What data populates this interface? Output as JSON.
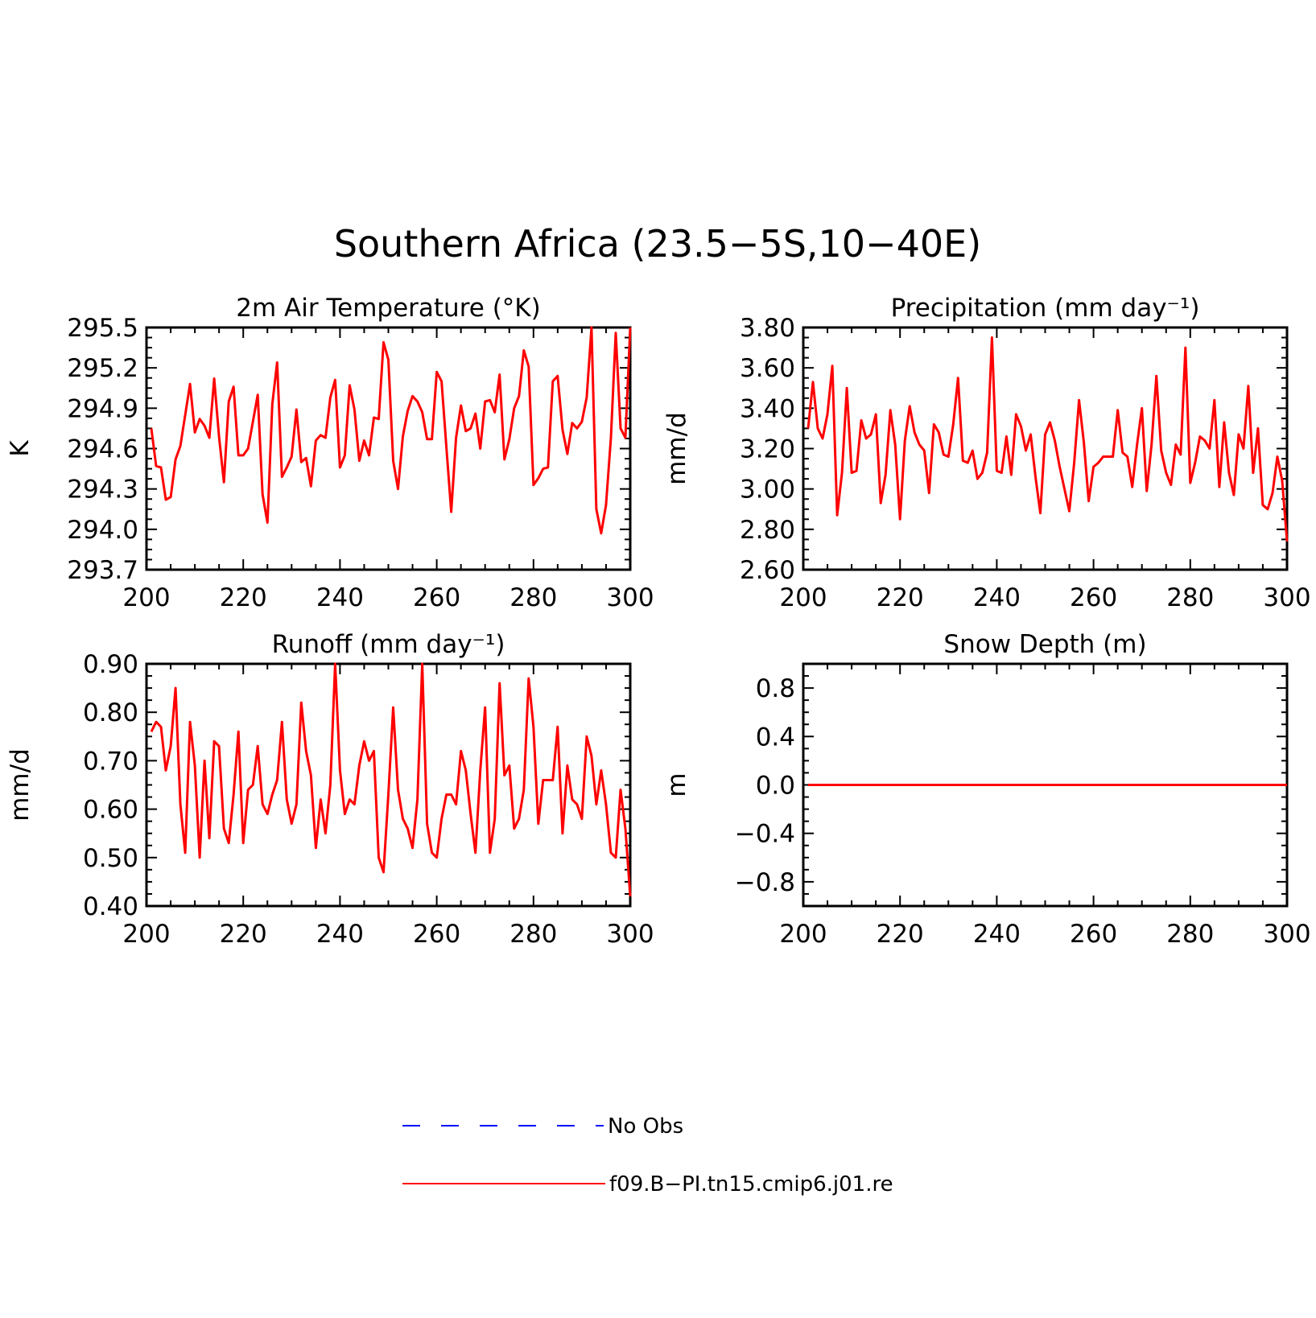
{
  "main_title": "Southern Africa (23.5−5S,10−40E)",
  "series_color": "#ff0000",
  "obs_color": "#0000ff",
  "legend": {
    "obs_label": "No Obs",
    "model_label": "f09.B−PI.tn15.cmip6.j01.re"
  },
  "chart_data": [
    {
      "type": "line",
      "title": "2m Air Temperature (°K)",
      "ylabel": "K",
      "xlim": [
        200,
        300
      ],
      "ylim": [
        293.7,
        295.5
      ],
      "xticks": [
        200,
        220,
        240,
        260,
        280,
        300
      ],
      "xtick_labels": [
        "200",
        "220",
        "240",
        "260",
        "280",
        "300"
      ],
      "yticks": [
        293.7,
        294.0,
        294.3,
        294.6,
        294.9,
        295.2,
        295.5
      ],
      "ytick_labels": [
        "293.7",
        "294.0",
        "294.3",
        "294.6",
        "294.9",
        "295.2",
        "295.5"
      ],
      "x_start": 201,
      "y": [
        294.75,
        294.47,
        294.46,
        294.22,
        294.24,
        294.52,
        294.62,
        294.85,
        295.08,
        294.72,
        294.82,
        294.77,
        294.68,
        295.12,
        294.69,
        294.35,
        294.95,
        295.06,
        294.55,
        294.55,
        294.6,
        294.8,
        295.0,
        294.26,
        294.05,
        294.93,
        295.24,
        294.39,
        294.46,
        294.54,
        294.89,
        294.5,
        294.53,
        294.32,
        294.66,
        294.7,
        294.68,
        294.98,
        295.11,
        294.46,
        294.55,
        295.07,
        294.89,
        294.51,
        294.66,
        294.55,
        294.83,
        294.82,
        295.39,
        295.26,
        294.51,
        294.3,
        294.69,
        294.88,
        294.99,
        294.95,
        294.87,
        294.67,
        294.67,
        295.17,
        295.1,
        294.61,
        294.13,
        294.68,
        294.92,
        294.73,
        294.75,
        294.86,
        294.6,
        294.95,
        294.96,
        294.87,
        295.15,
        294.52,
        294.67,
        294.9,
        294.99,
        295.33,
        295.21,
        294.33,
        294.38,
        294.45,
        294.46,
        295.1,
        295.14,
        294.74,
        294.56,
        294.79,
        294.75,
        294.8,
        294.98,
        295.5,
        294.15,
        293.97,
        294.18,
        294.68,
        295.46,
        294.75,
        294.68,
        295.5
      ]
    },
    {
      "type": "line",
      "title": "Precipitation (mm day⁻¹)",
      "ylabel": "mm/d",
      "xlim": [
        200,
        300
      ],
      "ylim": [
        2.6,
        3.8
      ],
      "xticks": [
        200,
        220,
        240,
        260,
        280,
        300
      ],
      "xtick_labels": [
        "200",
        "220",
        "240",
        "260",
        "280",
        "300"
      ],
      "yticks": [
        2.6,
        2.8,
        3.0,
        3.2,
        3.4,
        3.6,
        3.8
      ],
      "ytick_labels": [
        "2.60",
        "2.80",
        "3.00",
        "3.20",
        "3.40",
        "3.60",
        "3.80"
      ],
      "x_start": 201,
      "y": [
        3.3,
        3.53,
        3.3,
        3.25,
        3.37,
        3.61,
        2.87,
        3.08,
        3.5,
        3.08,
        3.09,
        3.34,
        3.25,
        3.27,
        3.37,
        2.93,
        3.07,
        3.39,
        3.22,
        2.85,
        3.24,
        3.41,
        3.28,
        3.22,
        3.19,
        2.98,
        3.32,
        3.28,
        3.17,
        3.16,
        3.32,
        3.55,
        3.14,
        3.13,
        3.19,
        3.05,
        3.08,
        3.18,
        3.75,
        3.09,
        3.08,
        3.26,
        3.07,
        3.37,
        3.31,
        3.19,
        3.27,
        3.06,
        2.88,
        3.27,
        3.33,
        3.24,
        3.11,
        3.0,
        2.89,
        3.13,
        3.44,
        3.23,
        2.94,
        3.11,
        3.13,
        3.16,
        3.16,
        3.16,
        3.39,
        3.18,
        3.16,
        3.01,
        3.22,
        3.4,
        2.99,
        3.22,
        3.56,
        3.19,
        3.08,
        3.02,
        3.22,
        3.17,
        3.7,
        3.03,
        3.13,
        3.26,
        3.24,
        3.2,
        3.44,
        3.01,
        3.33,
        3.08,
        2.97,
        3.27,
        3.2,
        3.51,
        3.08,
        3.3,
        2.92,
        2.9,
        2.98,
        3.16,
        3.04,
        2.74
      ]
    },
    {
      "type": "line",
      "title": "Runoff (mm day⁻¹)",
      "ylabel": "mm/d",
      "xlim": [
        200,
        300
      ],
      "ylim": [
        0.4,
        0.9
      ],
      "xticks": [
        200,
        220,
        240,
        260,
        280,
        300
      ],
      "xtick_labels": [
        "200",
        "220",
        "240",
        "260",
        "280",
        "300"
      ],
      "yticks": [
        0.4,
        0.5,
        0.6,
        0.7,
        0.8,
        0.9
      ],
      "ytick_labels": [
        "0.40",
        "0.50",
        "0.60",
        "0.70",
        "0.80",
        "0.90"
      ],
      "x_start": 201,
      "y": [
        0.76,
        0.78,
        0.77,
        0.68,
        0.73,
        0.85,
        0.61,
        0.51,
        0.78,
        0.69,
        0.5,
        0.7,
        0.54,
        0.74,
        0.73,
        0.56,
        0.53,
        0.63,
        0.76,
        0.53,
        0.64,
        0.65,
        0.73,
        0.61,
        0.59,
        0.63,
        0.66,
        0.78,
        0.62,
        0.57,
        0.61,
        0.82,
        0.72,
        0.67,
        0.52,
        0.62,
        0.55,
        0.65,
        0.9,
        0.68,
        0.59,
        0.62,
        0.61,
        0.69,
        0.74,
        0.7,
        0.72,
        0.5,
        0.47,
        0.63,
        0.81,
        0.64,
        0.58,
        0.56,
        0.52,
        0.62,
        0.9,
        0.57,
        0.51,
        0.5,
        0.58,
        0.63,
        0.63,
        0.61,
        0.72,
        0.68,
        0.59,
        0.51,
        0.68,
        0.81,
        0.51,
        0.58,
        0.86,
        0.67,
        0.69,
        0.56,
        0.58,
        0.64,
        0.87,
        0.77,
        0.57,
        0.66,
        0.66,
        0.66,
        0.77,
        0.55,
        0.69,
        0.62,
        0.61,
        0.58,
        0.75,
        0.71,
        0.61,
        0.68,
        0.61,
        0.51,
        0.5,
        0.64,
        0.56,
        0.42
      ]
    },
    {
      "type": "line",
      "title": "Snow Depth (m)",
      "ylabel": "m",
      "xlim": [
        200,
        300
      ],
      "ylim": [
        -1.0,
        1.0
      ],
      "xticks": [
        200,
        220,
        240,
        260,
        280,
        300
      ],
      "xtick_labels": [
        "200",
        "220",
        "240",
        "260",
        "280",
        "300"
      ],
      "yticks": [
        -0.8,
        -0.4,
        0.0,
        0.4,
        0.8
      ],
      "ytick_labels": [
        "−0.8",
        "−0.4",
        "0.0",
        "0.4",
        "0.8"
      ],
      "x_start": 201,
      "constant": 0.0,
      "count": 100
    }
  ]
}
